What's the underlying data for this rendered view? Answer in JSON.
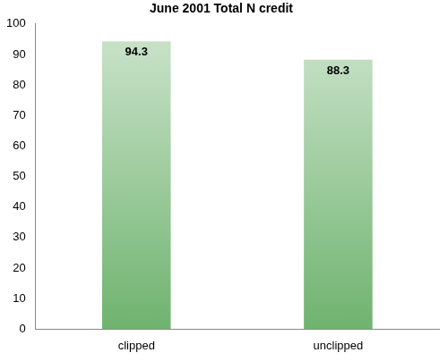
{
  "chart_data": {
    "type": "bar",
    "title": "June 2001 Total N credit",
    "categories": [
      "clipped",
      "unclipped"
    ],
    "values": [
      94.3,
      88.3
    ],
    "color": "#6fb36f",
    "ylim": [
      0,
      100
    ],
    "yticks": [
      0,
      10,
      20,
      30,
      40,
      50,
      60,
      70,
      80,
      90,
      100
    ],
    "grid": false,
    "data_labels": true
  }
}
